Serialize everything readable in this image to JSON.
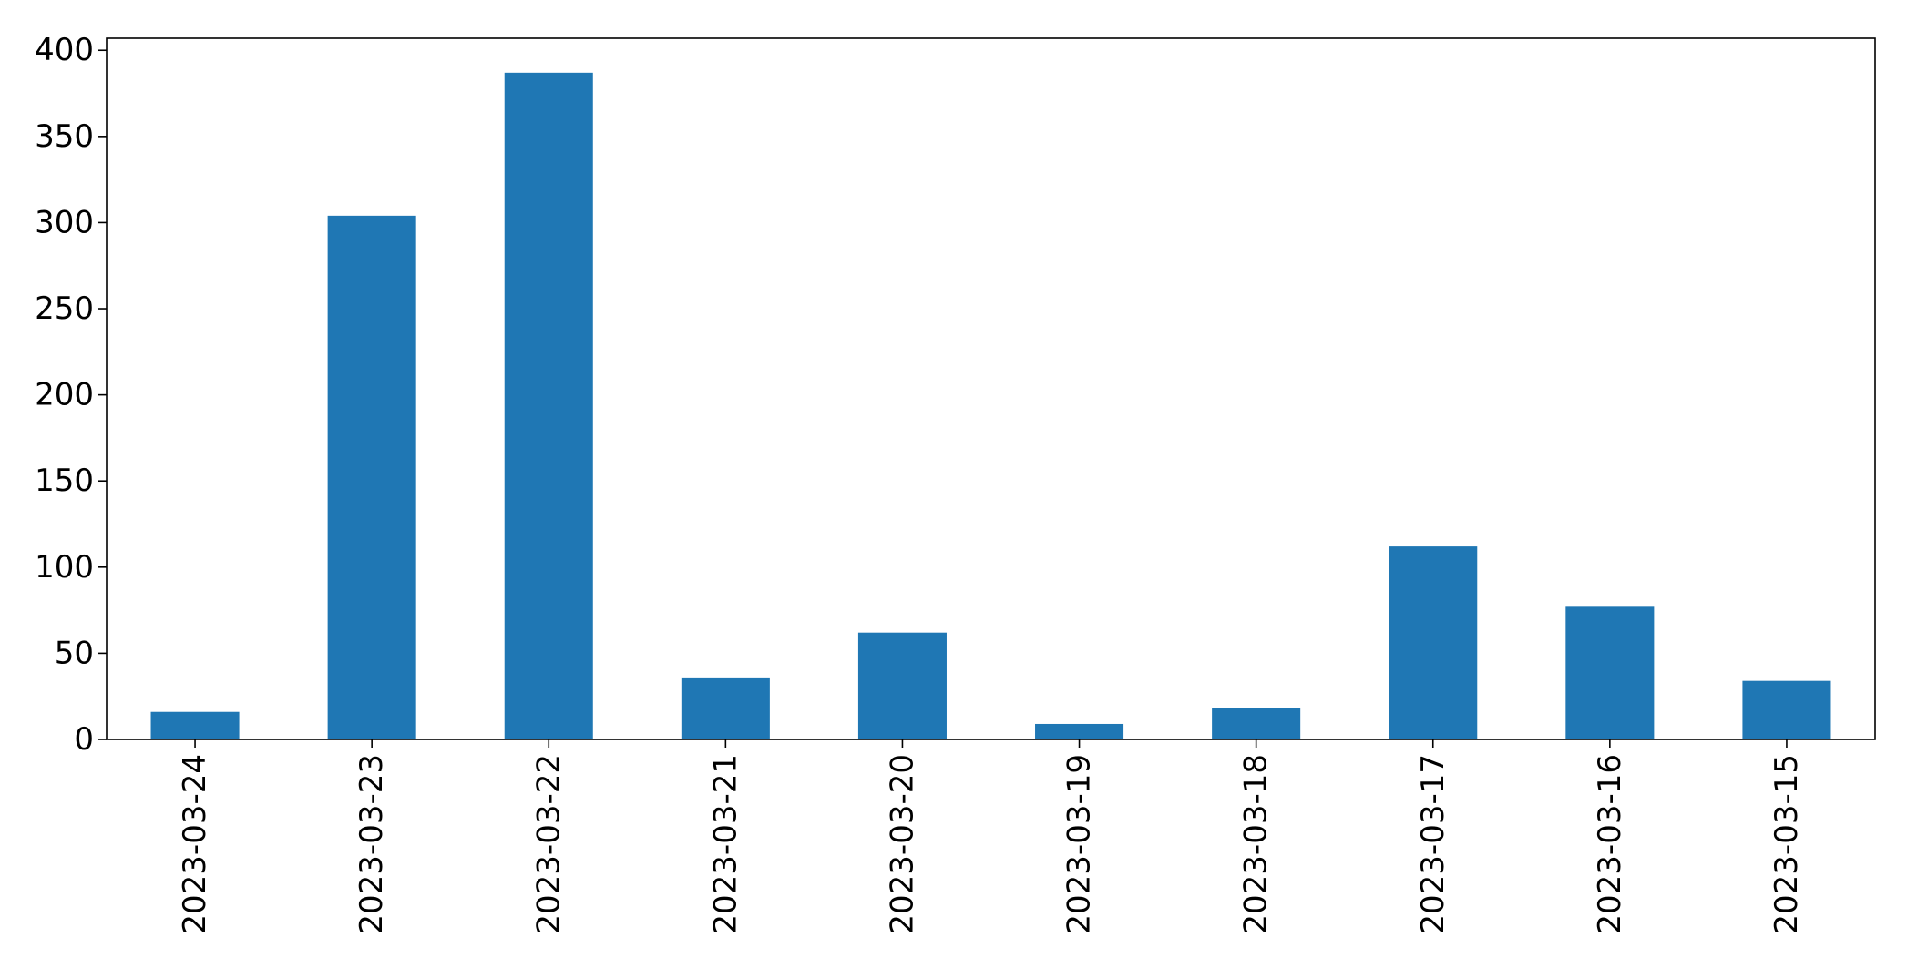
{
  "chart_data": {
    "type": "bar",
    "title": "",
    "xlabel": "",
    "ylabel": "",
    "categories": [
      "2023-03-24",
      "2023-03-23",
      "2023-03-22",
      "2023-03-21",
      "2023-03-20",
      "2023-03-19",
      "2023-03-18",
      "2023-03-17",
      "2023-03-16",
      "2023-03-15"
    ],
    "values": [
      16,
      304,
      387,
      36,
      62,
      9,
      18,
      112,
      77,
      34
    ],
    "ylim": [
      0,
      407
    ],
    "yticks": [
      0,
      50,
      100,
      150,
      200,
      250,
      300,
      350,
      400
    ],
    "grid": false,
    "legend": "none",
    "bar_color": "#1f77b4",
    "x_tick_rotation": "vertical"
  }
}
